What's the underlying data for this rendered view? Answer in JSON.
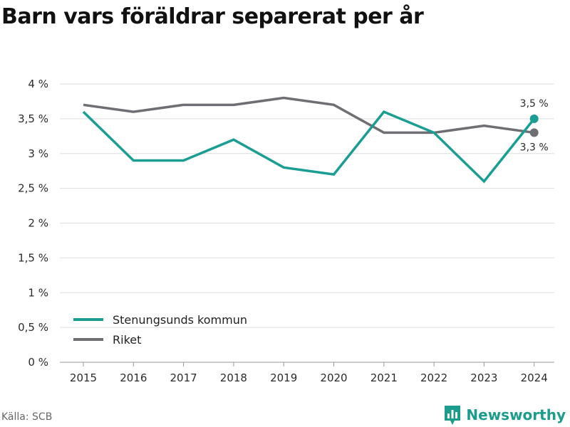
{
  "title": "Barn vars föräldrar separerat per år",
  "source": "Källa: SCB",
  "brand": {
    "name": "Newsworthy",
    "logo_icon": "newsworthy-bar-chart-icon",
    "color": "#1c9c8c"
  },
  "chart_data": {
    "type": "line",
    "x": [
      "2015",
      "2016",
      "2017",
      "2018",
      "2019",
      "2020",
      "2021",
      "2022",
      "2023",
      "2024"
    ],
    "y_ticks": [
      "0 %",
      "0,5 %",
      "1 %",
      "1,5 %",
      "2 %",
      "2,5 %",
      "3 %",
      "3,5 %",
      "4 %"
    ],
    "ylim": [
      0,
      4
    ],
    "grid": "horizontal",
    "legend_position": "bottom-left",
    "series": [
      {
        "name": "Stenungsunds kommun",
        "color": "#1a9e93",
        "values": [
          3.6,
          2.9,
          2.9,
          3.2,
          2.8,
          2.7,
          3.6,
          3.3,
          2.6,
          3.5
        ],
        "end_label": "3,5 %"
      },
      {
        "name": "Riket",
        "color": "#6e6e73",
        "values": [
          3.7,
          3.6,
          3.7,
          3.7,
          3.8,
          3.7,
          3.3,
          3.3,
          3.4,
          3.3
        ],
        "end_label": "3,3 %"
      }
    ]
  }
}
